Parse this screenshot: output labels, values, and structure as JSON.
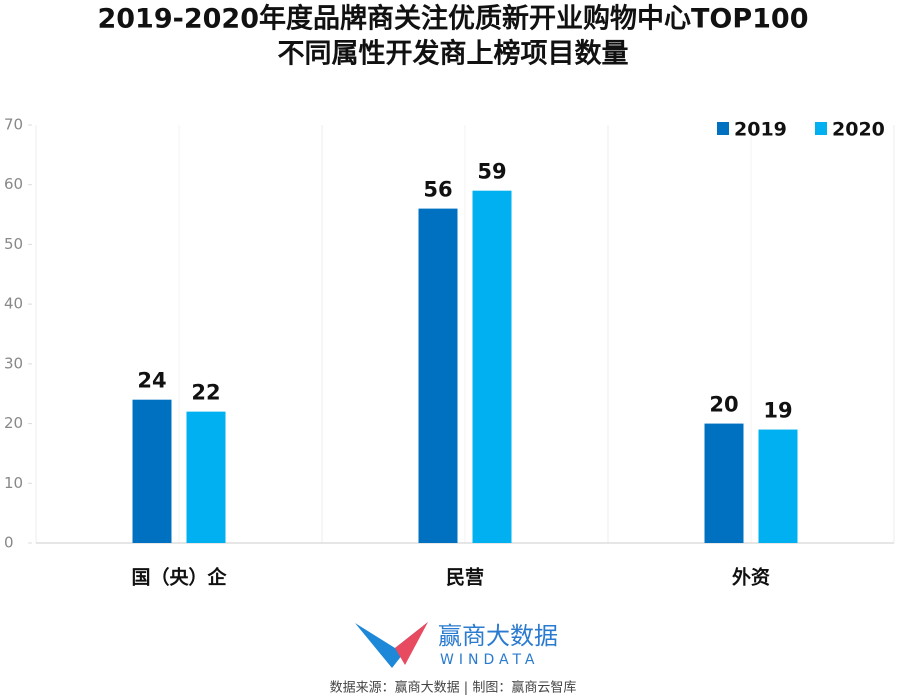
{
  "chart_data": {
    "type": "bar",
    "title": "2019-2020年度品牌商关注优质新开业购物中心TOP100",
    "subtitle": "不同属性开发商上榜项目数量",
    "categories": [
      "国（央）企",
      "民营",
      "外资"
    ],
    "series": [
      {
        "name": "2019",
        "color": "#0070c0",
        "values": [
          24,
          56,
          20
        ]
      },
      {
        "name": "2020",
        "color": "#00b0f0",
        "values": [
          22,
          59,
          19
        ]
      }
    ],
    "ylim": [
      0,
      70
    ],
    "yticks": [
      0,
      10,
      20,
      30,
      40,
      50,
      60,
      70
    ],
    "legend": "top-right"
  },
  "logo": {
    "name": "赢商大数据",
    "sub": "WINDATA"
  },
  "source": "数据来源：赢商大数据 | 制图：赢商云智库"
}
